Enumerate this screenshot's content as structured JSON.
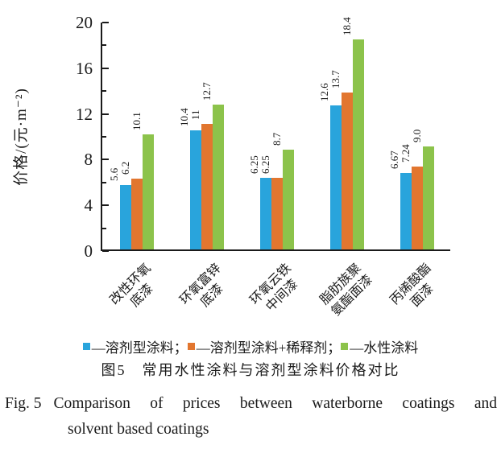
{
  "chart_data": {
    "type": "bar",
    "title_zh": "图5　常用水性涂料与溶剂型涂料价格对比",
    "ylabel": "价格/(元·m⁻²)",
    "ylim": [
      0,
      20
    ],
    "yticks": [
      0,
      4,
      8,
      12,
      16,
      20
    ],
    "minor_yticks": [
      2,
      6,
      10,
      14,
      18
    ],
    "grid": false,
    "legend_position": "bottom",
    "categories": [
      [
        "改性环氧",
        "底漆"
      ],
      [
        "环氧富锌",
        "底漆"
      ],
      [
        "环氧云铁",
        "中间漆"
      ],
      [
        "脂肪族聚",
        "氨酯面漆"
      ],
      [
        "丙烯酸酯",
        "面漆"
      ]
    ],
    "series": [
      {
        "name": "溶剂型涂料",
        "color": "#29A4DC",
        "values": [
          5.6,
          10.4,
          6.25,
          12.6,
          6.67
        ],
        "labels": [
          "5.6",
          "10.4",
          "6.25",
          "12.6",
          "6.67"
        ]
      },
      {
        "name": "溶剂型涂料+稀释剂",
        "color": "#E2762F",
        "values": [
          6.2,
          11,
          6.25,
          13.7,
          7.24
        ],
        "labels": [
          "6.2",
          "11",
          "6.25",
          "13.7",
          "7.24"
        ]
      },
      {
        "name": "水性涂料",
        "color": "#8CC34B",
        "values": [
          10.1,
          12.7,
          8.7,
          18.4,
          9.0
        ],
        "labels": [
          "10.1",
          "12.7",
          "8.7",
          "18.4",
          "9.0"
        ]
      }
    ]
  },
  "legend": {
    "dash": "—",
    "separator": "；"
  },
  "captions": {
    "zh": "图5　常用水性涂料与溶剂型涂料价格对比",
    "en_prefix": "Fig. 5",
    "en_line1": "Comparison of prices between waterborne coatings and",
    "en_line2": "solvent based coatings"
  },
  "colors": {
    "axis": "#1a1a1a",
    "solvent": "#29A4DC",
    "solvent_thinner": "#E2762F",
    "waterborne": "#8CC34B"
  }
}
